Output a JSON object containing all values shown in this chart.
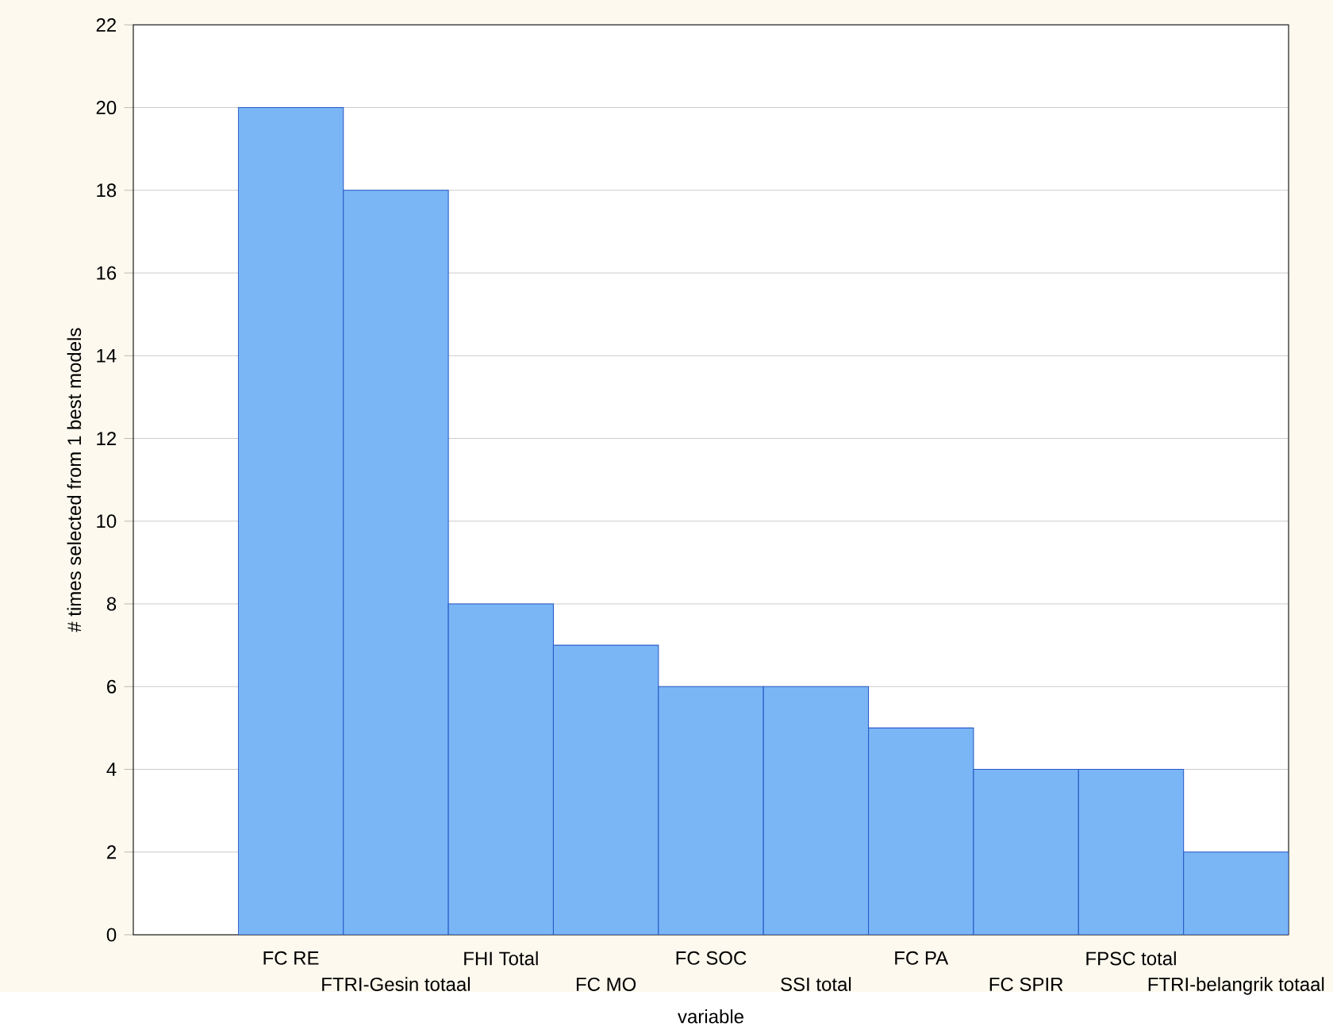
{
  "chart_data": {
    "type": "bar",
    "xlabel": "variable",
    "ylabel": "# times selected from 1 best models",
    "categories": [
      "FC RE",
      "FTRI-Gesin totaal",
      "FHI Total",
      "FC MO",
      "FC SOC",
      "SSI total",
      "FC PA",
      "FC SPIR",
      "FPSC total",
      "FTRI-belangrik totaal"
    ],
    "values": [
      20,
      18,
      8,
      7,
      6,
      6,
      5,
      4,
      4,
      2
    ],
    "color": "#7ab6f6",
    "ylim": [
      0,
      22
    ],
    "yticks": [
      0,
      2,
      4,
      6,
      8,
      10,
      12,
      14,
      16,
      18,
      20,
      22
    ],
    "grid": "y"
  }
}
